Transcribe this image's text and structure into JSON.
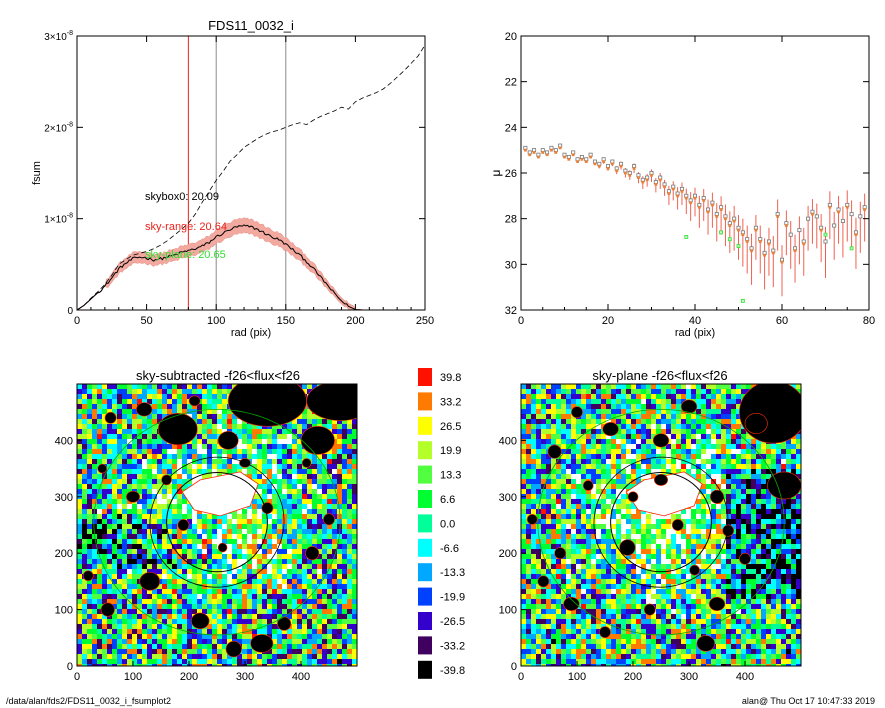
{
  "footer": {
    "path": "/data/alan/fds2/FDS11_0032_i_fsumplot2",
    "stamp": "alan@  Thu Oct 17 10:47:33 2019"
  },
  "colors": {
    "sky_box": "#000000",
    "sky_range": "#e8231d",
    "sky_plane": "#33dd33",
    "band": "#f2a9a0",
    "mu_orange": "#e8823a",
    "mu_gray": "#777777"
  },
  "chart_data": [
    {
      "type": "line",
      "title": "FDS11_0032_i",
      "xlabel": "rad (pix)",
      "ylabel": "fsum",
      "xlim": [
        0,
        250
      ],
      "ylim": [
        0,
        3e-08
      ],
      "x_ticks": [
        0,
        50,
        100,
        150,
        200,
        250
      ],
      "y_ticks": [
        {
          "value": 0,
          "label": "0"
        },
        {
          "value": 1e-08,
          "label": "1×10",
          "exp": "-8"
        },
        {
          "value": 2e-08,
          "label": "2×10",
          "exp": "-8"
        },
        {
          "value": 3e-08,
          "label": "3×10",
          "exp": "-8"
        }
      ],
      "vlines": [
        {
          "x": 80,
          "color": "red"
        },
        {
          "x": 100,
          "color": "gray"
        },
        {
          "x": 150,
          "color": "gray"
        }
      ],
      "annotations": [
        {
          "text": "skybox0: 20.09",
          "color": "black"
        },
        {
          "text": "sky-range: 20.64",
          "color": "red"
        },
        {
          "text": "sky-plane: 20.65",
          "color": "green"
        }
      ],
      "series": [
        {
          "style": "dashed",
          "x": [
            0,
            5,
            10,
            15,
            20,
            25,
            30,
            35,
            40,
            45,
            50,
            55,
            60,
            65,
            70,
            75,
            80,
            85,
            90,
            95,
            100,
            105,
            110,
            115,
            120,
            125,
            130,
            135,
            140,
            145,
            150,
            155,
            160,
            165,
            170,
            175,
            180,
            185,
            190,
            195,
            200,
            205,
            210,
            215,
            220,
            225,
            230,
            235,
            240,
            245,
            250
          ],
          "y": [
            0,
            5e-10,
            1.3e-09,
            2e-09,
            2.8e-09,
            3.8e-09,
            5e-09,
            5.5e-09,
            6e-09,
            6.2e-09,
            6.4e-09,
            6.7e-09,
            7.1e-09,
            7.6e-09,
            8.2e-09,
            8.8e-09,
            9.5e-09,
            1.05e-08,
            1.18e-08,
            1.3e-08,
            1.42e-08,
            1.52e-08,
            1.63e-08,
            1.7e-08,
            1.78e-08,
            1.83e-08,
            1.88e-08,
            1.92e-08,
            1.95e-08,
            1.97e-08,
            2e-08,
            2.03e-08,
            2.05e-08,
            2.03e-08,
            2.08e-08,
            2.12e-08,
            2.15e-08,
            2.18e-08,
            2.22e-08,
            2.2e-08,
            2.28e-08,
            2.32e-08,
            2.35e-08,
            2.38e-08,
            2.42e-08,
            2.48e-08,
            2.55e-08,
            2.62e-08,
            2.7e-08,
            2.78e-08,
            2.9e-08
          ]
        },
        {
          "style": "solid",
          "x": [
            0,
            5,
            10,
            15,
            20,
            25,
            30,
            35,
            40,
            45,
            50,
            55,
            60,
            65,
            70,
            75,
            80,
            85,
            90,
            95,
            100,
            105,
            110,
            115,
            120,
            125,
            130,
            135,
            140,
            145,
            150,
            155,
            160,
            165,
            170,
            175,
            180,
            185,
            190,
            195,
            200,
            205
          ],
          "y": [
            0,
            5e-10,
            1.2e-09,
            1.9e-09,
            2.6e-09,
            3.5e-09,
            4.5e-09,
            5.1e-09,
            5.6e-09,
            5.8e-09,
            5.7e-09,
            5.5e-09,
            5.6e-09,
            5.8e-09,
            6e-09,
            6.3e-09,
            6.5e-09,
            6.7e-09,
            7e-09,
            7.4e-09,
            8e-09,
            8.4e-09,
            8.8e-09,
            9.1e-09,
            9.2e-09,
            9.1e-09,
            8.8e-09,
            8.4e-09,
            8e-09,
            7.7e-09,
            7.2e-09,
            6.6e-09,
            6e-09,
            5.3e-09,
            4.5e-09,
            3.6e-09,
            2.7e-09,
            1.8e-09,
            1e-09,
            4e-10,
            5e-11,
            0
          ]
        }
      ]
    },
    {
      "type": "scatter",
      "ylabel": "μ",
      "xlabel": "rad (pix)",
      "xlim": [
        0,
        80
      ],
      "ylim": [
        32,
        20
      ],
      "x_ticks": [
        0,
        20,
        40,
        60,
        80
      ],
      "y_ticks": [
        20,
        22,
        24,
        26,
        28,
        30,
        32
      ],
      "y_inverted": true,
      "series": [
        {
          "kind": "points_with_errorbars",
          "x": [
            1,
            2,
            3,
            4,
            5,
            6,
            7,
            8,
            9,
            10,
            11,
            12,
            13,
            14,
            15,
            16,
            17,
            18,
            19,
            20,
            21,
            22,
            23,
            24,
            25,
            26,
            27,
            28,
            29,
            30,
            31,
            32,
            33,
            34,
            35,
            36,
            37,
            38,
            39,
            40,
            41,
            42,
            43,
            44,
            45,
            46,
            47,
            48,
            49,
            50,
            51,
            52,
            53,
            54,
            55,
            56,
            57,
            58,
            59,
            60,
            61,
            62,
            63,
            64,
            65,
            66,
            67,
            68,
            69,
            70,
            71,
            72,
            73,
            74,
            75,
            76,
            77,
            78,
            79
          ],
          "y": [
            24.9,
            25.1,
            25.0,
            25.2,
            25.0,
            25.1,
            24.9,
            25.0,
            24.8,
            25.2,
            25.3,
            25.1,
            25.4,
            25.3,
            25.4,
            25.2,
            25.5,
            25.6,
            25.4,
            25.7,
            25.5,
            25.8,
            25.6,
            25.9,
            26.0,
            25.7,
            26.1,
            26.3,
            26.2,
            26.0,
            26.4,
            26.2,
            26.5,
            26.8,
            26.6,
            26.9,
            26.7,
            27.0,
            27.2,
            27.0,
            27.4,
            27.1,
            27.6,
            27.3,
            27.8,
            27.5,
            27.9,
            28.2,
            28.0,
            28.4,
            28.6,
            28.9,
            29.3,
            28.4,
            28.9,
            29.5,
            29.0,
            29.4,
            27.8,
            29.8,
            28.2,
            28.7,
            29.3,
            28.5,
            29.0,
            28.0,
            27.7,
            27.9,
            28.4,
            29.0,
            27.4,
            28.3,
            27.6,
            28.1,
            27.4,
            27.8,
            28.6,
            27.9,
            27.5
          ],
          "err": [
            0.1,
            0.1,
            0.1,
            0.1,
            0.1,
            0.1,
            0.1,
            0.1,
            0.1,
            0.1,
            0.15,
            0.15,
            0.15,
            0.15,
            0.15,
            0.15,
            0.15,
            0.2,
            0.2,
            0.2,
            0.2,
            0.25,
            0.25,
            0.3,
            0.3,
            0.3,
            0.35,
            0.4,
            0.4,
            0.4,
            0.45,
            0.5,
            0.5,
            0.6,
            0.6,
            0.7,
            0.7,
            0.8,
            0.9,
            0.9,
            1.0,
            1.0,
            1.1,
            1.1,
            1.2,
            1.2,
            1.3,
            1.3,
            1.4,
            1.4,
            1.5,
            1.5,
            1.6,
            1.4,
            1.5,
            1.6,
            1.5,
            1.6,
            1.6,
            1.6,
            1.4,
            1.5,
            1.5,
            1.5,
            1.5,
            1.4,
            1.4,
            1.4,
            1.5,
            1.6,
            1.5,
            1.5,
            1.5,
            1.6,
            1.6,
            1.5,
            1.6,
            1.6,
            1.5
          ]
        },
        {
          "kind": "points",
          "color": "green",
          "x": [
            38,
            46,
            48,
            50,
            51,
            70,
            76
          ],
          "y": [
            28.8,
            28.6,
            28.9,
            29.2,
            31.6,
            28.7,
            29.3
          ]
        }
      ]
    },
    {
      "type": "heatmap",
      "title": "sky-subtracted -f26<flux<f26",
      "xlim": [
        0,
        500
      ],
      "ylim": [
        0,
        500
      ],
      "x_ticks": [
        0,
        100,
        200,
        300,
        400
      ],
      "y_ticks": [
        0,
        100,
        200,
        300,
        400
      ]
    },
    {
      "type": "heatmap",
      "title": "sky-plane -f26<flux<f26",
      "xlim": [
        0,
        500
      ],
      "ylim": [
        0,
        500
      ],
      "x_ticks": [
        0,
        100,
        200,
        300,
        400
      ],
      "y_ticks": [
        0,
        100,
        200,
        300,
        400
      ]
    },
    {
      "type": "colorbar",
      "levels": [
        {
          "label": "39.8",
          "color": "#ff1100"
        },
        {
          "label": "33.2",
          "color": "#ff7a00"
        },
        {
          "label": "26.5",
          "color": "#ffff00"
        },
        {
          "label": "19.9",
          "color": "#b4ff2a"
        },
        {
          "label": "13.3",
          "color": "#52ff40"
        },
        {
          "label": "6.6",
          "color": "#00ff30"
        },
        {
          "label": "0.0",
          "color": "#00ff99"
        },
        {
          "label": "-6.6",
          "color": "#00ffff"
        },
        {
          "label": "-13.3",
          "color": "#00a8ff"
        },
        {
          "label": "-19.9",
          "color": "#0040ff"
        },
        {
          "label": "-26.5",
          "color": "#3300cc"
        },
        {
          "label": "-33.2",
          "color": "#400060"
        },
        {
          "label": "-39.8",
          "color": "#000000"
        }
      ]
    }
  ]
}
